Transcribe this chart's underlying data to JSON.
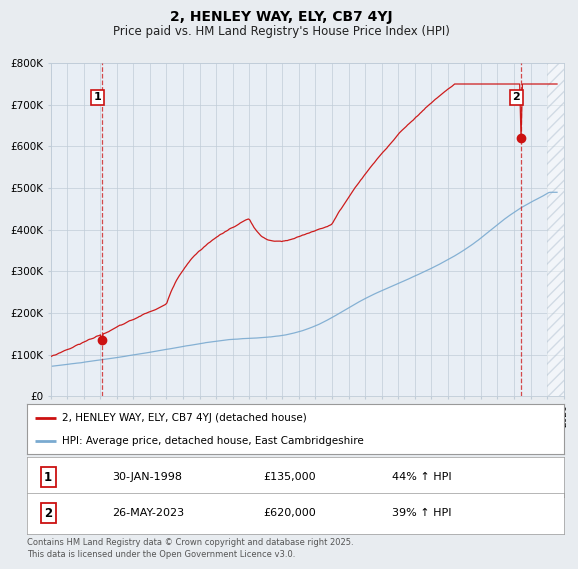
{
  "title": "2, HENLEY WAY, ELY, CB7 4YJ",
  "subtitle": "Price paid vs. HM Land Registry's House Price Index (HPI)",
  "bg_color": "#e8ecf0",
  "plot_bg_color": "#e8eef5",
  "grid_color": "#c0ccd8",
  "sale1_date": 1998.08,
  "sale1_price": 135000,
  "sale2_date": 2023.4,
  "sale2_price": 620000,
  "red_line_color": "#cc1111",
  "blue_line_color": "#7aaad0",
  "vline_color": "#cc1111",
  "xlim": [
    1995,
    2026
  ],
  "ylim": [
    0,
    800000
  ],
  "yticks": [
    0,
    100000,
    200000,
    300000,
    400000,
    500000,
    600000,
    700000,
    800000
  ],
  "legend_label_red": "2, HENLEY WAY, ELY, CB7 4YJ (detached house)",
  "legend_label_blue": "HPI: Average price, detached house, East Cambridgeshire",
  "footer_text": "Contains HM Land Registry data © Crown copyright and database right 2025.\nThis data is licensed under the Open Government Licence v3.0.",
  "annotation1_date_str": "30-JAN-1998",
  "annotation1_price_str": "£135,000",
  "annotation1_pct": "44% ↑ HPI",
  "annotation2_date_str": "26-MAY-2023",
  "annotation2_price_str": "£620,000",
  "annotation2_pct": "39% ↑ HPI"
}
